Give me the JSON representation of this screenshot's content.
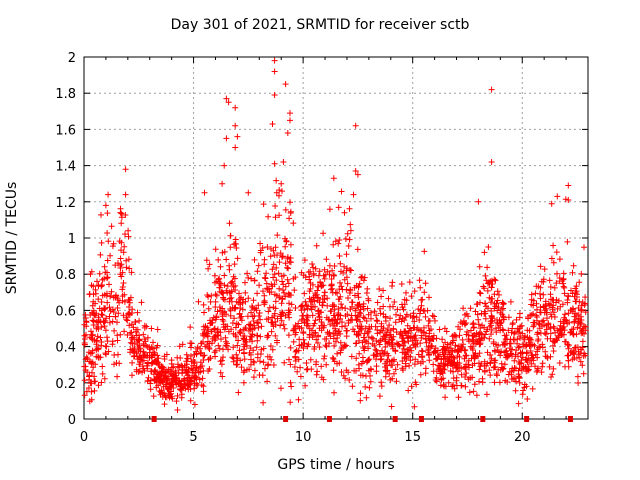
{
  "chart_data": {
    "type": "scatter",
    "title": "Day 301 of 2021, SRMTID for receiver sctb",
    "xlabel": "GPS time / hours",
    "ylabel": "SRMTID / TECUs",
    "xlim": [
      0,
      23.0
    ],
    "ylim": [
      0,
      2
    ],
    "xticks": [
      "0",
      "5",
      "10",
      "15",
      "20"
    ],
    "xtick_values": [
      0,
      5,
      10,
      15,
      20
    ],
    "yticks": [
      "0",
      "0.2",
      "0.4",
      "0.6",
      "0.8",
      "1",
      "1.2",
      "1.4",
      "1.6",
      "1.8",
      "2"
    ],
    "ytick_values": [
      0,
      0.2,
      0.4,
      0.6,
      0.8,
      1.0,
      1.2,
      1.4,
      1.6,
      1.8,
      2.0
    ],
    "grid": true,
    "marker": "+",
    "color": "#ff0000",
    "gap_marker_color": "#dd0000",
    "gap_markers_x": [
      3.2,
      9.2,
      11.2,
      14.2,
      15.4,
      18.2,
      20.2,
      22.2
    ],
    "series": [
      {
        "name": "sctb",
        "activity_profile": [
          [
            0.0,
            0.35,
            0.15
          ],
          [
            0.5,
            0.45,
            0.25
          ],
          [
            1.0,
            0.62,
            0.3
          ],
          [
            1.5,
            0.65,
            0.3
          ],
          [
            1.9,
            0.9,
            0.35
          ],
          [
            2.2,
            0.45,
            0.15
          ],
          [
            2.7,
            0.35,
            0.12
          ],
          [
            3.3,
            0.28,
            0.1
          ],
          [
            4.0,
            0.2,
            0.08
          ],
          [
            4.7,
            0.22,
            0.09
          ],
          [
            5.2,
            0.3,
            0.12
          ],
          [
            5.6,
            0.5,
            0.2
          ],
          [
            6.2,
            0.6,
            0.25
          ],
          [
            6.7,
            0.65,
            0.3
          ],
          [
            7.2,
            0.5,
            0.2
          ],
          [
            7.8,
            0.45,
            0.2
          ],
          [
            8.5,
            0.7,
            0.35
          ],
          [
            9.3,
            0.75,
            0.35
          ],
          [
            9.8,
            0.45,
            0.2
          ],
          [
            10.5,
            0.6,
            0.25
          ],
          [
            11.3,
            0.55,
            0.25
          ],
          [
            12.0,
            0.65,
            0.3
          ],
          [
            12.8,
            0.45,
            0.2
          ],
          [
            13.5,
            0.4,
            0.15
          ],
          [
            14.2,
            0.45,
            0.18
          ],
          [
            15.0,
            0.45,
            0.2
          ],
          [
            15.6,
            0.5,
            0.2
          ],
          [
            16.2,
            0.3,
            0.12
          ],
          [
            17.0,
            0.35,
            0.15
          ],
          [
            17.8,
            0.4,
            0.18
          ],
          [
            18.5,
            0.55,
            0.25
          ],
          [
            19.3,
            0.4,
            0.15
          ],
          [
            20.0,
            0.35,
            0.15
          ],
          [
            20.8,
            0.5,
            0.2
          ],
          [
            21.5,
            0.55,
            0.25
          ],
          [
            22.2,
            0.55,
            0.25
          ],
          [
            22.8,
            0.5,
            0.2
          ]
        ],
        "outliers": [
          [
            8.7,
            1.98
          ],
          [
            8.7,
            1.92
          ],
          [
            9.2,
            1.85
          ],
          [
            8.7,
            1.79
          ],
          [
            18.6,
            1.82
          ],
          [
            6.5,
            1.77
          ],
          [
            6.6,
            1.75
          ],
          [
            6.9,
            1.72
          ],
          [
            9.4,
            1.69
          ],
          [
            9.4,
            1.65
          ],
          [
            8.6,
            1.63
          ],
          [
            12.4,
            1.62
          ],
          [
            6.9,
            1.62
          ],
          [
            9.3,
            1.58
          ],
          [
            7.0,
            1.56
          ],
          [
            6.5,
            1.55
          ],
          [
            6.9,
            1.5
          ],
          [
            18.6,
            1.42
          ],
          [
            8.7,
            1.41
          ],
          [
            9.1,
            1.42
          ],
          [
            6.4,
            1.4
          ],
          [
            1.9,
            1.38
          ],
          [
            12.4,
            1.37
          ],
          [
            12.5,
            1.35
          ],
          [
            11.4,
            1.33
          ],
          [
            22.1,
            1.29
          ],
          [
            1.1,
            1.24
          ],
          [
            1.9,
            1.24
          ],
          [
            12.3,
            1.24
          ],
          [
            21.6,
            1.23
          ],
          [
            22.1,
            1.21
          ],
          [
            18.0,
            1.2
          ],
          [
            1.0,
            1.18
          ],
          [
            7.5,
            1.25
          ],
          [
            8.8,
            1.25
          ],
          [
            5.5,
            1.25
          ],
          [
            9.0,
            1.3
          ],
          [
            6.3,
            1.3
          ]
        ],
        "x_range": [
          0.0,
          22.9
        ],
        "point_count": 2600,
        "y_min": 0.02
      }
    ]
  }
}
